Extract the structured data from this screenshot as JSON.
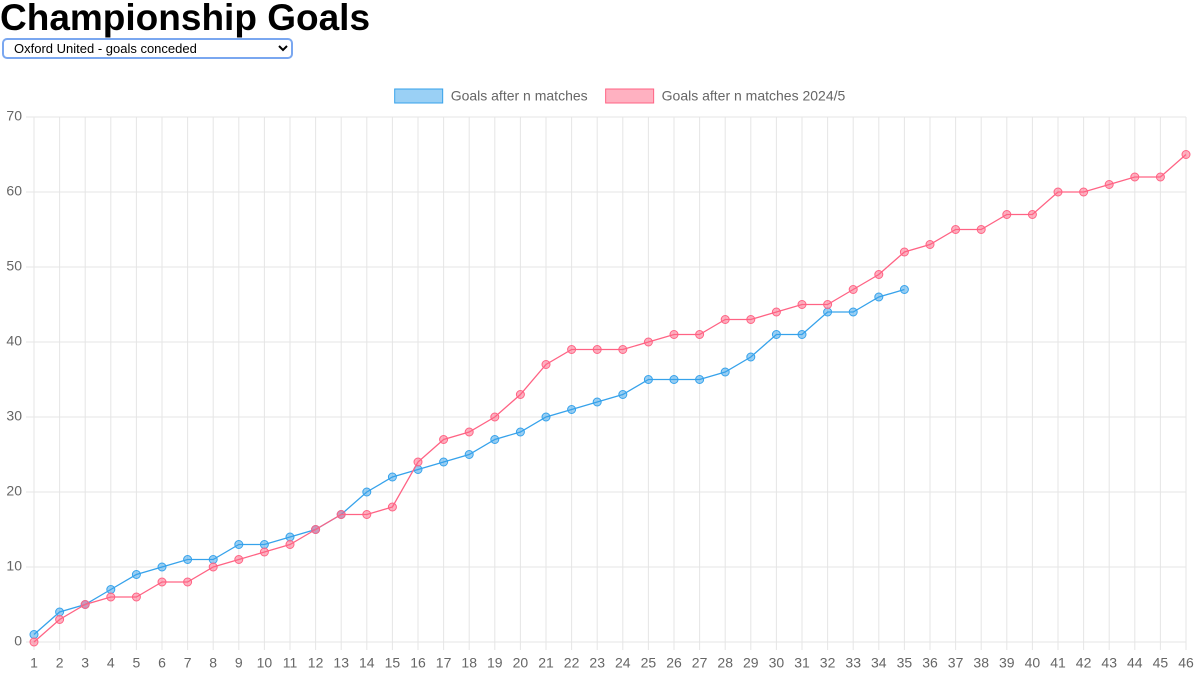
{
  "header": {
    "title": "Championship Goals",
    "selector": {
      "selected": "Oxford United - goals conceded"
    }
  },
  "chart_data": {
    "type": "line",
    "x": [
      1,
      2,
      3,
      4,
      5,
      6,
      7,
      8,
      9,
      10,
      11,
      12,
      13,
      14,
      15,
      16,
      17,
      18,
      19,
      20,
      21,
      22,
      23,
      24,
      25,
      26,
      27,
      28,
      29,
      30,
      31,
      32,
      33,
      34,
      35,
      36,
      37,
      38,
      39,
      40,
      41,
      42,
      43,
      44,
      45,
      46
    ],
    "series": [
      {
        "name": "Goals after n matches",
        "color": "#36a2eb",
        "values": [
          1,
          4,
          5,
          7,
          9,
          10,
          11,
          11,
          13,
          13,
          14,
          15,
          17,
          20,
          22,
          23,
          24,
          25,
          27,
          28,
          30,
          31,
          32,
          33,
          35,
          35,
          35,
          36,
          38,
          41,
          41,
          44,
          44,
          46,
          47,
          null,
          null,
          null,
          null,
          null,
          null,
          null,
          null,
          null,
          null,
          null
        ]
      },
      {
        "name": "Goals after n matches 2024/5",
        "color": "#ff6384",
        "values": [
          0,
          3,
          5,
          6,
          6,
          8,
          8,
          10,
          11,
          12,
          13,
          15,
          17,
          17,
          18,
          24,
          27,
          28,
          30,
          33,
          37,
          39,
          39,
          39,
          40,
          41,
          41,
          43,
          43,
          44,
          45,
          45,
          47,
          49,
          52,
          53,
          55,
          55,
          57,
          57,
          60,
          60,
          61,
          62,
          62,
          65
        ]
      }
    ],
    "xlim": [
      1,
      46
    ],
    "xticks": [
      1,
      2,
      3,
      4,
      5,
      6,
      7,
      8,
      9,
      10,
      11,
      12,
      13,
      14,
      15,
      16,
      17,
      18,
      19,
      20,
      21,
      22,
      23,
      24,
      25,
      26,
      27,
      28,
      29,
      30,
      31,
      32,
      33,
      34,
      35,
      36,
      37,
      38,
      39,
      40,
      41,
      42,
      43,
      44,
      45,
      46
    ],
    "ylim": [
      0,
      70
    ],
    "yticks": [
      0,
      10,
      20,
      30,
      40,
      50,
      60,
      70
    ],
    "grid": true,
    "legend": "top"
  }
}
